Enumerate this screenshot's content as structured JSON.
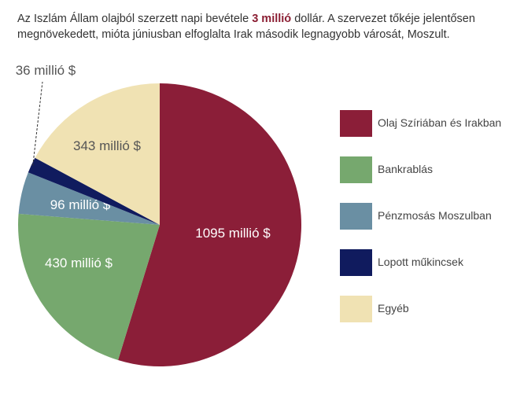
{
  "header": {
    "text_before": "Az Iszlám Állam olajból szerzett napi bevétele ",
    "highlight": "3 millió",
    "text_after": " dollár. A szervezet tőkéje jelentősen megnövekedett, mióta júniusban elfoglalta Irak második legnagyobb városát, Moszult."
  },
  "chart_data": {
    "type": "pie",
    "title": "",
    "unit": "millió $",
    "slices": [
      {
        "name": "Olaj Szíriában és Irakban",
        "value": 1095,
        "label": "1095 millió $",
        "color": "#8b1e38"
      },
      {
        "name": "Bankrablás",
        "value": 430,
        "label": "430 millió $",
        "color": "#76a86e"
      },
      {
        "name": "Pénzmosás Moszulban",
        "value": 96,
        "label": "96 millió $",
        "color": "#6a8fa3"
      },
      {
        "name": "Lopott műkincsek",
        "value": 36,
        "label": "36 millió $",
        "color": "#101b5e"
      },
      {
        "name": "Egyéb",
        "value": 343,
        "label": "343 millió $",
        "color": "#f0e2b3"
      }
    ],
    "legend_position": "right"
  }
}
